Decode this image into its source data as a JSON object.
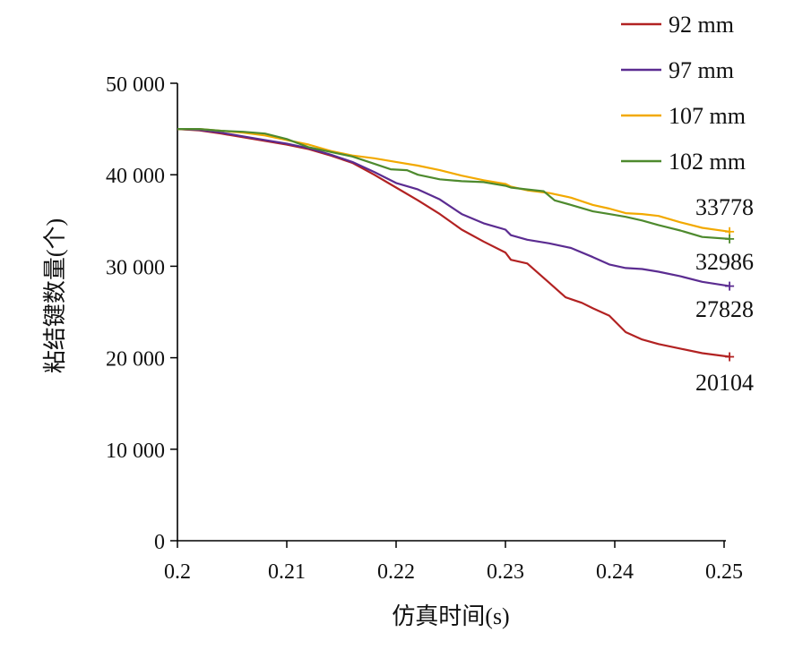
{
  "chart_data": {
    "type": "line",
    "xlabel": "仿真时间(s)",
    "ylabel": "粘结键数量(个)",
    "xlim": [
      0.2,
      0.25
    ],
    "ylim": [
      0,
      50000
    ],
    "x_ticks": [
      "0.2",
      "0.21",
      "0.22",
      "0.23",
      "0.24",
      "0.25"
    ],
    "y_ticks": [
      "0",
      "10 000",
      "20 000",
      "30 000",
      "40 000",
      "50 000"
    ],
    "grid": false,
    "legend_position": "top-right",
    "series": [
      {
        "name": "92 mm",
        "color": "#B22222",
        "end_label": "20104",
        "points": [
          [
            0.2,
            45000
          ],
          [
            0.202,
            44850
          ],
          [
            0.204,
            44500
          ],
          [
            0.206,
            44100
          ],
          [
            0.208,
            43700
          ],
          [
            0.21,
            43300
          ],
          [
            0.212,
            42800
          ],
          [
            0.214,
            42100
          ],
          [
            0.216,
            41300
          ],
          [
            0.218,
            40000
          ],
          [
            0.22,
            38600
          ],
          [
            0.222,
            37200
          ],
          [
            0.224,
            35700
          ],
          [
            0.226,
            34000
          ],
          [
            0.228,
            32700
          ],
          [
            0.23,
            31500
          ],
          [
            0.2305,
            30700
          ],
          [
            0.232,
            30300
          ],
          [
            0.234,
            28200
          ],
          [
            0.2355,
            26600
          ],
          [
            0.237,
            26000
          ],
          [
            0.238,
            25400
          ],
          [
            0.2395,
            24600
          ],
          [
            0.241,
            22800
          ],
          [
            0.2425,
            22000
          ],
          [
            0.244,
            21500
          ],
          [
            0.246,
            21000
          ],
          [
            0.248,
            20500
          ],
          [
            0.2505,
            20104
          ]
        ]
      },
      {
        "name": "97 mm",
        "color": "#5B2C91",
        "end_label": "27828",
        "points": [
          [
            0.2,
            45000
          ],
          [
            0.202,
            44900
          ],
          [
            0.204,
            44600
          ],
          [
            0.206,
            44200
          ],
          [
            0.208,
            43800
          ],
          [
            0.21,
            43400
          ],
          [
            0.212,
            42900
          ],
          [
            0.214,
            42200
          ],
          [
            0.216,
            41400
          ],
          [
            0.218,
            40300
          ],
          [
            0.22,
            39100
          ],
          [
            0.222,
            38400
          ],
          [
            0.224,
            37300
          ],
          [
            0.226,
            35700
          ],
          [
            0.228,
            34700
          ],
          [
            0.23,
            34000
          ],
          [
            0.2305,
            33400
          ],
          [
            0.232,
            32900
          ],
          [
            0.234,
            32500
          ],
          [
            0.236,
            32000
          ],
          [
            0.238,
            31000
          ],
          [
            0.2395,
            30200
          ],
          [
            0.241,
            29800
          ],
          [
            0.2425,
            29700
          ],
          [
            0.244,
            29400
          ],
          [
            0.246,
            28900
          ],
          [
            0.248,
            28300
          ],
          [
            0.2505,
            27828
          ]
        ]
      },
      {
        "name": "107 mm",
        "color": "#F2A900",
        "end_label": "33778",
        "points": [
          [
            0.2,
            45000
          ],
          [
            0.202,
            45000
          ],
          [
            0.204,
            44800
          ],
          [
            0.206,
            44600
          ],
          [
            0.208,
            44300
          ],
          [
            0.21,
            43800
          ],
          [
            0.212,
            43300
          ],
          [
            0.214,
            42600
          ],
          [
            0.216,
            42100
          ],
          [
            0.218,
            41800
          ],
          [
            0.22,
            41400
          ],
          [
            0.222,
            41000
          ],
          [
            0.224,
            40500
          ],
          [
            0.226,
            39900
          ],
          [
            0.228,
            39400
          ],
          [
            0.23,
            39000
          ],
          [
            0.2305,
            38700
          ],
          [
            0.232,
            38300
          ],
          [
            0.234,
            38000
          ],
          [
            0.236,
            37500
          ],
          [
            0.238,
            36700
          ],
          [
            0.2395,
            36300
          ],
          [
            0.241,
            35800
          ],
          [
            0.2425,
            35700
          ],
          [
            0.244,
            35500
          ],
          [
            0.246,
            34800
          ],
          [
            0.248,
            34200
          ],
          [
            0.2505,
            33778
          ]
        ]
      },
      {
        "name": "102 mm",
        "color": "#4E8A2E",
        "end_label": "32986",
        "points": [
          [
            0.2,
            45000
          ],
          [
            0.202,
            45000
          ],
          [
            0.204,
            44800
          ],
          [
            0.206,
            44700
          ],
          [
            0.208,
            44500
          ],
          [
            0.21,
            43900
          ],
          [
            0.212,
            43000
          ],
          [
            0.214,
            42500
          ],
          [
            0.216,
            42000
          ],
          [
            0.218,
            41200
          ],
          [
            0.2195,
            40600
          ],
          [
            0.221,
            40500
          ],
          [
            0.222,
            40000
          ],
          [
            0.224,
            39500
          ],
          [
            0.226,
            39300
          ],
          [
            0.228,
            39200
          ],
          [
            0.23,
            38800
          ],
          [
            0.2305,
            38600
          ],
          [
            0.232,
            38400
          ],
          [
            0.2335,
            38200
          ],
          [
            0.2345,
            37200
          ],
          [
            0.236,
            36700
          ],
          [
            0.238,
            36000
          ],
          [
            0.2395,
            35700
          ],
          [
            0.241,
            35400
          ],
          [
            0.2425,
            35000
          ],
          [
            0.244,
            34500
          ],
          [
            0.246,
            33900
          ],
          [
            0.248,
            33200
          ],
          [
            0.2505,
            32986
          ]
        ]
      }
    ]
  }
}
